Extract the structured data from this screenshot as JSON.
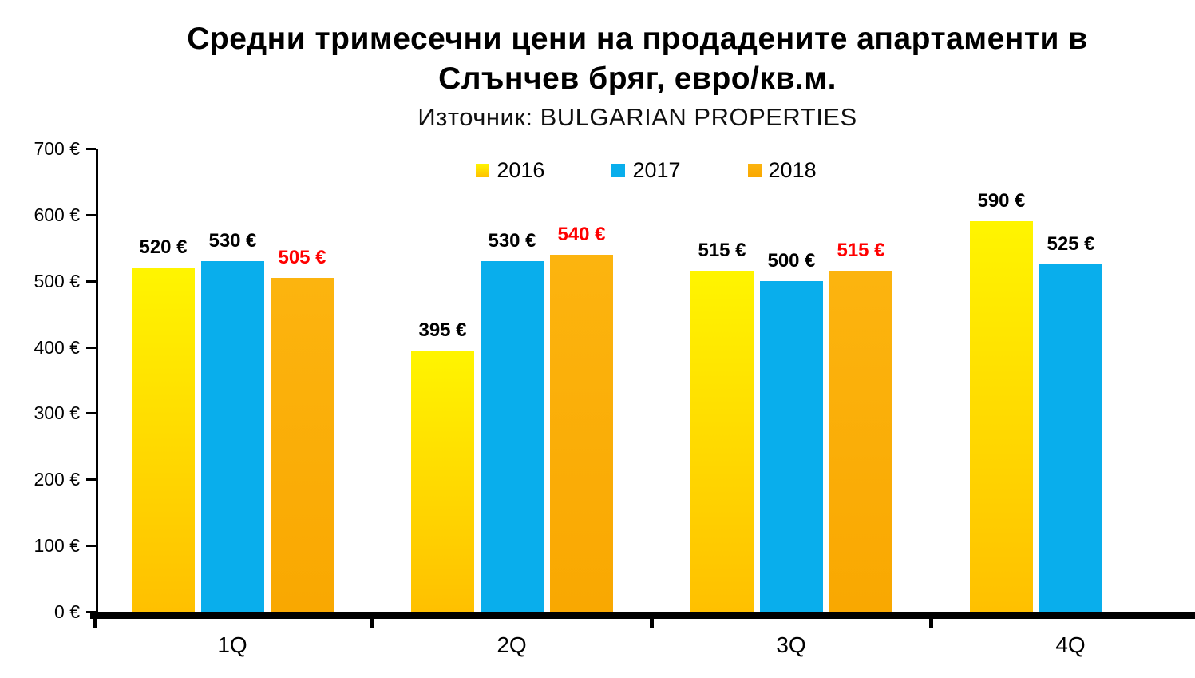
{
  "title": {
    "line1": "Средни тримесечни цени на продадените апартаменти в",
    "line2": "Слънчев бряг, евро/кв.м.",
    "source": "Източник: BULGARIAN PROPERTIES"
  },
  "chart_data": {
    "type": "bar",
    "title": "Средни тримесечни цени на продадените апартаменти в Слънчев бряг, евро/кв.м.",
    "subtitle": "Източник: BULGARIAN PROPERTIES",
    "categories": [
      "1Q",
      "2Q",
      "3Q",
      "4Q"
    ],
    "series": [
      {
        "name": "2016",
        "values": [
          520,
          395,
          515,
          590
        ],
        "color_top": "#FFF500",
        "color_bottom": "#FFC000",
        "label_color": "#000000"
      },
      {
        "name": "2017",
        "values": [
          530,
          530,
          500,
          525
        ],
        "color_top": "#09AEEC",
        "color_bottom": "#09AEEC",
        "label_color": "#000000"
      },
      {
        "name": "2018",
        "values": [
          505,
          540,
          515,
          null
        ],
        "color_top": "#FCB40F",
        "color_bottom": "#F9A801",
        "label_color": "#FF0000"
      }
    ],
    "y_axis": {
      "min": 0,
      "max": 700,
      "step": 100,
      "suffix": " €"
    },
    "value_suffix": " €",
    "ylim": [
      0,
      700
    ],
    "grid": false,
    "legend_position": "top-center",
    "axis_color": "#000000",
    "text_color": "#000000"
  }
}
